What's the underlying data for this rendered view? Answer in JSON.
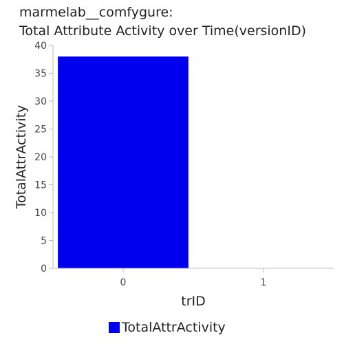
{
  "chart_data": {
    "type": "bar",
    "title_line1": "marmelab__comfygure:",
    "title_line2": "Total Attribute Activity over Time(versionID)",
    "xlabel": "trID",
    "ylabel": "TotalAttrActivity",
    "categories": [
      "0",
      "1"
    ],
    "series": [
      {
        "name": "TotalAttrActivity",
        "values": [
          38,
          0
        ],
        "color": "#0000ee"
      }
    ],
    "ylim": [
      0,
      40
    ],
    "yticks": [
      0,
      5,
      10,
      15,
      20,
      25,
      30,
      35,
      40
    ],
    "grid": false,
    "legend_position": "bottom"
  }
}
